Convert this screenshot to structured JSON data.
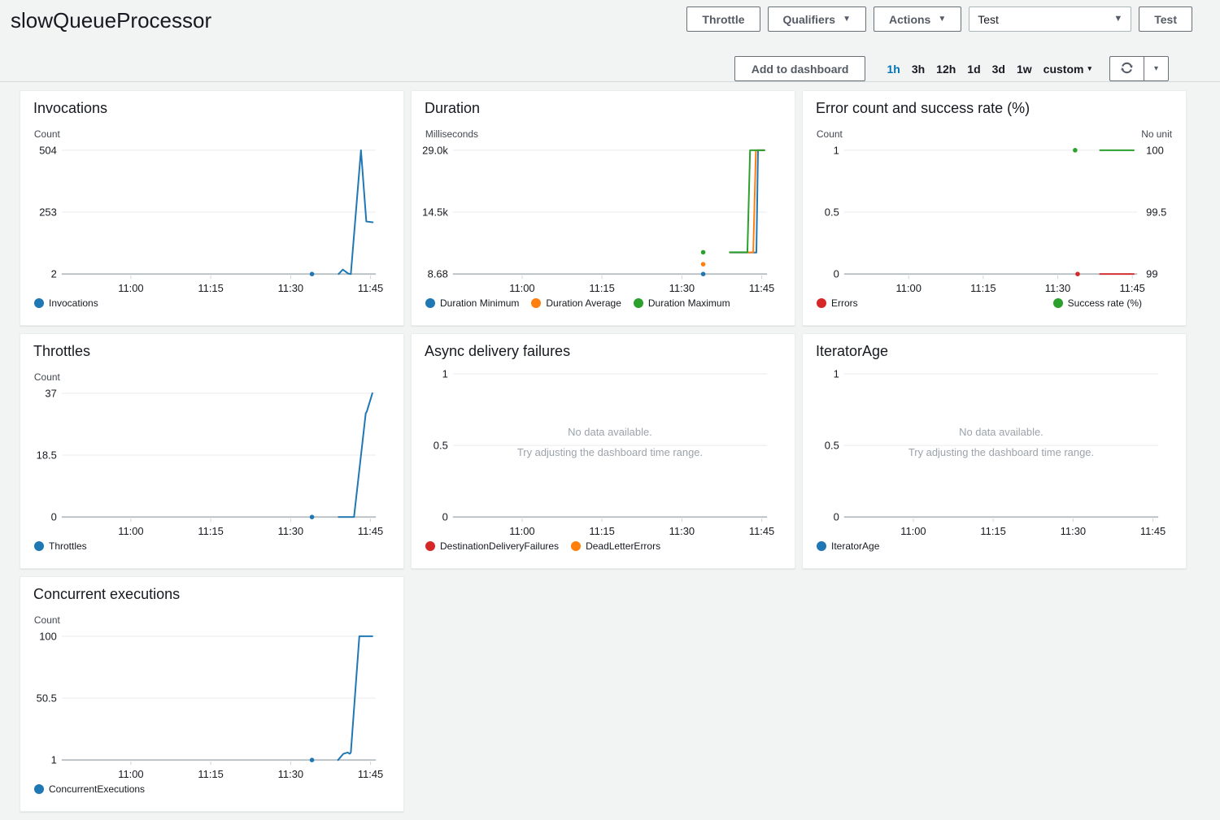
{
  "header": {
    "title": "slowQueueProcessor",
    "throttle_button": "Throttle",
    "qualifiers_button": "Qualifiers",
    "actions_button": "Actions",
    "test_select_value": "Test",
    "test_button": "Test"
  },
  "toolbar": {
    "add_to_dashboard": "Add to dashboard",
    "ranges": [
      "1h",
      "3h",
      "12h",
      "1d",
      "3d",
      "1w"
    ],
    "active_range": "1h",
    "custom_label": "custom"
  },
  "icons": {
    "caret_down": "▼",
    "caret_small": "▾"
  },
  "colors": {
    "blue": "#1f77b4",
    "orange": "#ff7f0e",
    "green": "#2ca02c",
    "red": "#d62728",
    "link_blue": "#0073bb",
    "page_bg": "#f2f3f3",
    "panel_bg": "#ffffff",
    "axis_line": "#b8bfc3",
    "gridline": "#e9ebed"
  },
  "chart_data": [
    {
      "type": "line",
      "title": "Invocations",
      "unit_left": "Count",
      "unit_right": null,
      "x_domain": [
        "10:47",
        "11:46"
      ],
      "x_ticks": [
        "11:00",
        "11:15",
        "11:30",
        "11:45"
      ],
      "y_left": {
        "min": 2,
        "max": 504,
        "ticks": [
          "504",
          "253",
          "2"
        ]
      },
      "y_right": null,
      "no_data": null,
      "series": [
        {
          "name": "Invocations",
          "color": "#1f77b4",
          "axis": "left",
          "dots": [
            [
              "11:34",
              2
            ]
          ],
          "points": [
            [
              "11:39",
              2
            ],
            [
              "11:39.8",
              20
            ],
            [
              "11:40.8",
              4
            ],
            [
              "11:41.3",
              2
            ],
            [
              "11:43.2",
              504
            ],
            [
              "11:44.2",
              215
            ],
            [
              "11:45.4",
              212
            ]
          ]
        }
      ],
      "legend_left": [
        {
          "label": "Invocations",
          "color": "#1f77b4"
        }
      ],
      "legend_right": []
    },
    {
      "type": "line",
      "title": "Duration",
      "unit_left": "Milliseconds",
      "unit_right": null,
      "x_domain": [
        "10:47",
        "11:46"
      ],
      "x_ticks": [
        "11:00",
        "11:15",
        "11:30",
        "11:45"
      ],
      "y_left": {
        "min": 8.68,
        "max": 29000,
        "ticks": [
          "29.0k",
          "14.5k",
          "8.68"
        ]
      },
      "y_right": null,
      "no_data": null,
      "series": [
        {
          "name": "Duration Minimum",
          "color": "#1f77b4",
          "axis": "left",
          "dots": [
            [
              "11:34",
              8.68
            ]
          ],
          "points": [
            [
              "11:39",
              5050
            ],
            [
              "11:44",
              5050
            ],
            [
              "11:44.3",
              29000
            ],
            [
              "11:45.5",
              29000
            ]
          ]
        },
        {
          "name": "Duration Average",
          "color": "#ff7f0e",
          "axis": "left",
          "dots": [
            [
              "11:34",
              2300
            ]
          ],
          "points": [
            [
              "11:39",
              5080
            ],
            [
              "11:43.4",
              5080
            ],
            [
              "11:43.9",
              29000
            ],
            [
              "11:45.5",
              29000
            ]
          ]
        },
        {
          "name": "Duration Maximum",
          "color": "#2ca02c",
          "axis": "left",
          "dots": [
            [
              "11:34",
              5100
            ]
          ],
          "points": [
            [
              "11:39",
              5100
            ],
            [
              "11:42.3",
              5100
            ],
            [
              "11:42.8",
              29000
            ],
            [
              "11:45.5",
              29000
            ]
          ]
        }
      ],
      "legend_left": [
        {
          "label": "Duration Minimum",
          "color": "#1f77b4"
        },
        {
          "label": "Duration Average",
          "color": "#ff7f0e"
        },
        {
          "label": "Duration Maximum",
          "color": "#2ca02c"
        }
      ],
      "legend_right": []
    },
    {
      "type": "line",
      "title": "Error count and success rate (%)",
      "unit_left": "Count",
      "unit_right": "No unit",
      "x_domain": [
        "10:47",
        "11:46"
      ],
      "x_ticks": [
        "11:00",
        "11:15",
        "11:30",
        "11:45"
      ],
      "y_left": {
        "min": 0,
        "max": 1,
        "ticks": [
          "1",
          "0.5",
          "0"
        ]
      },
      "y_right": {
        "min": 99,
        "max": 100,
        "ticks": [
          "100",
          "99.5",
          "99"
        ]
      },
      "no_data": null,
      "series": [
        {
          "name": "Errors",
          "color": "#d62728",
          "axis": "left",
          "dots": [
            [
              "11:34",
              0
            ]
          ],
          "points": [
            [
              "11:38.5",
              0
            ],
            [
              "11:45.3",
              0
            ]
          ]
        },
        {
          "name": "Success rate (%)",
          "color": "#2ca02c",
          "axis": "right",
          "dots": [
            [
              "11:33.5",
              100
            ]
          ],
          "points": [
            [
              "11:38.5",
              100
            ],
            [
              "11:45.3",
              100
            ]
          ]
        }
      ],
      "legend_left": [
        {
          "label": "Errors",
          "color": "#d62728"
        }
      ],
      "legend_right": [
        {
          "label": "Success rate (%)",
          "color": "#2ca02c"
        }
      ]
    },
    {
      "type": "line",
      "title": "Throttles",
      "unit_left": "Count",
      "unit_right": null,
      "x_domain": [
        "10:47",
        "11:46"
      ],
      "x_ticks": [
        "11:00",
        "11:15",
        "11:30",
        "11:45"
      ],
      "y_left": {
        "min": 0,
        "max": 37,
        "ticks": [
          "37",
          "18.5",
          "0"
        ]
      },
      "y_right": null,
      "no_data": null,
      "series": [
        {
          "name": "Throttles",
          "color": "#1f77b4",
          "axis": "left",
          "dots": [
            [
              "11:34",
              0
            ]
          ],
          "points": [
            [
              "11:39",
              0
            ],
            [
              "11:41.9",
              0
            ],
            [
              "11:44.1",
              31
            ],
            [
              "11:44.3",
              31.5
            ],
            [
              "11:45.35",
              37
            ]
          ]
        }
      ],
      "legend_left": [
        {
          "label": "Throttles",
          "color": "#1f77b4"
        }
      ],
      "legend_right": []
    },
    {
      "type": "line",
      "title": "Async delivery failures",
      "unit_left": null,
      "unit_right": null,
      "x_domain": [
        "10:47",
        "11:46"
      ],
      "x_ticks": [
        "11:00",
        "11:15",
        "11:30",
        "11:45"
      ],
      "y_left": {
        "min": 0,
        "max": 1,
        "ticks": [
          "1",
          "0.5",
          "0"
        ]
      },
      "y_right": null,
      "no_data": {
        "line1": "No data available.",
        "line2": "Try adjusting the dashboard time range."
      },
      "series": [],
      "legend_left": [
        {
          "label": "DestinationDeliveryFailures",
          "color": "#d62728"
        },
        {
          "label": "DeadLetterErrors",
          "color": "#ff7f0e"
        }
      ],
      "legend_right": []
    },
    {
      "type": "line",
      "title": "IteratorAge",
      "unit_left": null,
      "unit_right": null,
      "x_domain": [
        "10:47",
        "11:46"
      ],
      "x_ticks": [
        "11:00",
        "11:15",
        "11:30",
        "11:45"
      ],
      "y_left": {
        "min": 0,
        "max": 1,
        "ticks": [
          "1",
          "0.5",
          "0"
        ]
      },
      "y_right": null,
      "no_data": {
        "line1": "No data available.",
        "line2": "Try adjusting the dashboard time range."
      },
      "series": [],
      "legend_left": [
        {
          "label": "IteratorAge",
          "color": "#1f77b4"
        }
      ],
      "legend_right": []
    },
    {
      "type": "line",
      "title": "Concurrent executions",
      "unit_left": "Count",
      "unit_right": null,
      "x_domain": [
        "10:47",
        "11:46"
      ],
      "x_ticks": [
        "11:00",
        "11:15",
        "11:30",
        "11:45"
      ],
      "y_left": {
        "min": 1,
        "max": 100,
        "ticks": [
          "100",
          "50.5",
          "1"
        ]
      },
      "y_right": null,
      "no_data": null,
      "series": [
        {
          "name": "ConcurrentExecutions",
          "color": "#1f77b4",
          "axis": "left",
          "dots": [
            [
              "11:34",
              1
            ]
          ],
          "points": [
            [
              "11:38.9",
              1
            ],
            [
              "11:39.9",
              6
            ],
            [
              "11:40.7",
              7
            ],
            [
              "11:41.1",
              6
            ],
            [
              "11:41.3",
              7
            ],
            [
              "11:42.9",
              100
            ],
            [
              "11:45.35",
              100
            ]
          ]
        }
      ],
      "legend_left": [
        {
          "label": "ConcurrentExecutions",
          "color": "#1f77b4"
        }
      ],
      "legend_right": []
    }
  ]
}
